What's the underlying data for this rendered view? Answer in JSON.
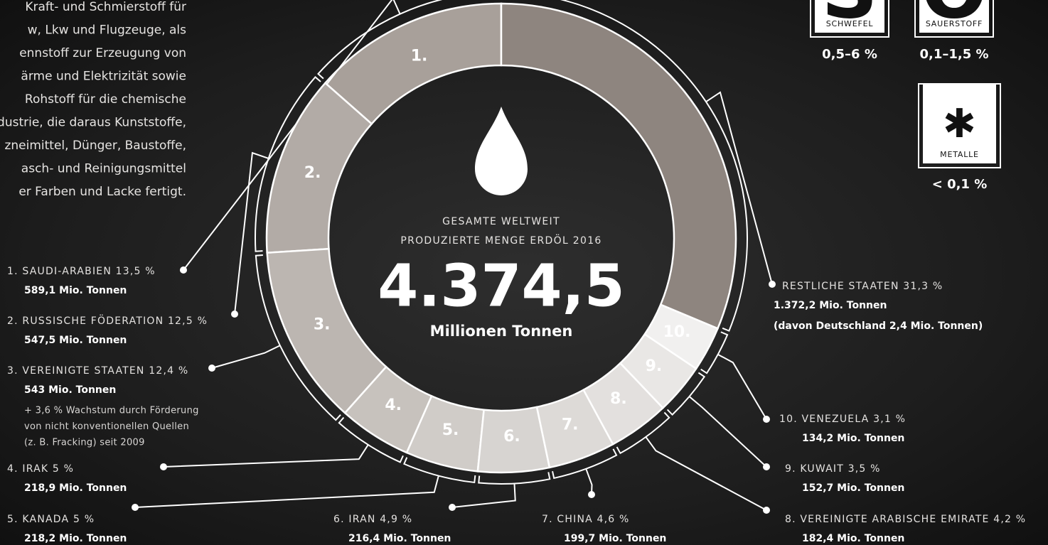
{
  "intro_lines": [
    "Kraft- und Schmierstoff für",
    "w, Lkw und Flugzeuge, als",
    "ennstoff zur Erzeugung von",
    "ärme und Elektrizität sowie",
    "Rohstoff für die chemische",
    "dustrie, die daraus Kunststoffe,",
    "zneimittel, Dünger, Baustoffe,",
    "asch- und Reinigungsmittel",
    "er Farben und Lacke fertigt."
  ],
  "elements": [
    {
      "symbol": "S",
      "name": "SCHWEFEL",
      "share": "0,5–6 %"
    },
    {
      "symbol": "O",
      "name": "SAUERSTOFF",
      "share": "0,1–1,5 %"
    },
    {
      "symbol": "✱",
      "name": "METALLE",
      "share": "< 0,1 %"
    }
  ],
  "chart_data": {
    "type": "donut",
    "center_lines": [
      "GESAMTE WELTWEIT",
      "PRODUZIERTE MENGE ERDÖL 2016"
    ],
    "total": "4.374,5",
    "total_unit": "Millionen Tonnen",
    "categories": [
      "1. SAUDI-ARABIEN",
      "2. RUSSISCHE FÖDERATION",
      "3. VEREINIGTE STAATEN",
      "4. IRAK",
      "5. KANADA",
      "6. IRAN",
      "7. CHINA",
      "8. VEREINIGTE ARABISCHE EMIRATE",
      "9. KUWAIT",
      "10. VENEZUELA",
      "RESTLICHE STAATEN"
    ],
    "segment_labels": [
      "1.",
      "2.",
      "3.",
      "4.",
      "5.",
      "6.",
      "7.",
      "8.",
      "9.",
      "10.",
      null
    ],
    "values": [
      13.5,
      12.5,
      12.4,
      5,
      5,
      4.9,
      4.6,
      4.2,
      3.5,
      3.1,
      31.3
    ],
    "value_labels": [
      "13,5 %",
      "12,5 %",
      "12,4 %",
      "5 %",
      "5 %",
      "4,9 %",
      "4,6 %",
      "4,2 %",
      "3,5 %",
      "3,1 %",
      "31,3 %"
    ],
    "tonnage_labels": [
      "589,1 Mio. Tonnen",
      "547,5 Mio. Tonnen",
      "543 Mio. Tonnen",
      "218,9 Mio. Tonnen",
      "218,2 Mio. Tonnen",
      "216,4 Mio. Tonnen",
      "199,7 Mio. Tonnen",
      "182,4 Mio. Tonnen",
      "152,7 Mio. Tonnen",
      "134,2 Mio. Tonnen",
      "1.372,2 Mio. Tonnen"
    ],
    "notes": [
      null,
      null,
      [
        "+ 3,6 % Wachstum durch Förderung",
        "von nicht konventionellen Quellen",
        "(z. B. Fracking) seit 2009"
      ],
      null,
      null,
      null,
      null,
      null,
      null,
      null,
      [
        "(davon Deutschland 2,4 Mio. Tonnen)"
      ]
    ],
    "colors": [
      "#a8a09a",
      "#b2aba6",
      "#bcb6b1",
      "#c7c2bd",
      "#d0ccc8",
      "#d7d4d1",
      "#dddad7",
      "#e3e0de",
      "#e9e7e5",
      "#f1f0ef",
      "#8e857f"
    ]
  }
}
